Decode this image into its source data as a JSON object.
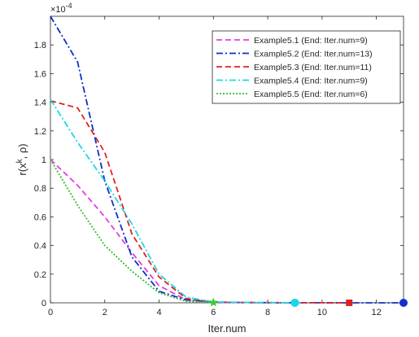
{
  "chart_data": {
    "type": "line",
    "xlabel": "Iter.num",
    "ylabel_main": "r(x",
    "ylabel_sup": "k",
    "ylabel_tail": ", ρ)",
    "y_exponent_base": "×10",
    "y_exponent_power": "-4",
    "y_scale": 0.0001,
    "xlim": [
      0,
      13
    ],
    "ylim": [
      0,
      2.0
    ],
    "x_ticks": [
      0,
      2,
      4,
      6,
      8,
      10,
      12
    ],
    "y_ticks": [
      0,
      0.2,
      0.4,
      0.6,
      0.8,
      1,
      1.2,
      1.4,
      1.6,
      1.8
    ],
    "grid": false,
    "legend_position": "top-right",
    "series": [
      {
        "name": "Example5.1 (End: Iter.num=9)",
        "color": "#e23ee2",
        "dash": "dashed",
        "x": [
          0,
          1,
          2,
          3,
          4,
          5,
          6,
          7,
          8,
          9
        ],
        "y": [
          1.0,
          0.82,
          0.6,
          0.35,
          0.12,
          0.02,
          0.004,
          0.001,
          0.0005,
          0.0002
        ],
        "end_marker": "circle",
        "end_marker_color": "#1aaed6"
      },
      {
        "name": "Example5.2 (End: Iter.num=13)",
        "color": "#1030c0",
        "dash": "dashdot",
        "x": [
          0,
          1,
          2,
          3,
          4,
          5,
          6,
          7,
          8,
          9,
          10,
          11,
          12,
          13
        ],
        "y": [
          2.0,
          1.68,
          0.85,
          0.32,
          0.08,
          0.02,
          0.005,
          0.002,
          0.001,
          0.0005,
          0.0003,
          0.0002,
          0.0001,
          0.0001
        ],
        "end_marker": "circle",
        "end_marker_color": "#1030d0"
      },
      {
        "name": "Example5.3 (End: Iter.num=11)",
        "color": "#e02020",
        "dash": "dashed",
        "x": [
          0,
          1,
          2,
          3,
          4,
          5,
          6,
          7,
          8,
          9,
          10,
          11
        ],
        "y": [
          1.41,
          1.36,
          1.05,
          0.48,
          0.18,
          0.03,
          0.006,
          0.002,
          0.001,
          0.0005,
          0.0003,
          0.0002
        ],
        "end_marker": "square",
        "end_marker_color": "#e02020"
      },
      {
        "name": "Example5.4 (End: Iter.num=9)",
        "color": "#1ad8e6",
        "dash": "dashdot",
        "x": [
          0,
          1,
          2,
          3,
          4,
          5,
          6,
          7,
          8,
          9
        ],
        "y": [
          1.42,
          1.12,
          0.85,
          0.55,
          0.2,
          0.04,
          0.006,
          0.002,
          0.001,
          0.0005
        ],
        "end_marker": "circle",
        "end_marker_color": "#1ad8e6"
      },
      {
        "name": "Example5.5 (End: Iter.num=6)",
        "color": "#30c030",
        "dash": "dotted",
        "x": [
          0,
          1,
          2,
          3,
          4,
          5,
          6
        ],
        "y": [
          1.0,
          0.68,
          0.4,
          0.22,
          0.07,
          0.01,
          0.002
        ],
        "end_marker": "star",
        "end_marker_color": "#30d030"
      }
    ]
  }
}
